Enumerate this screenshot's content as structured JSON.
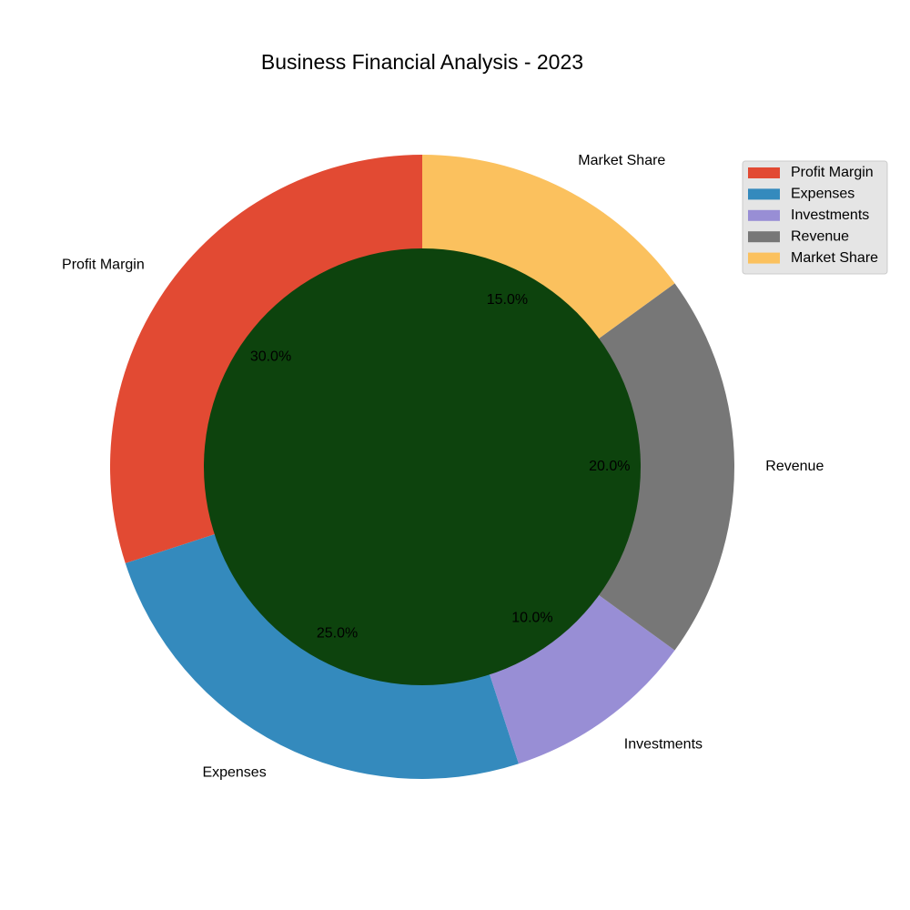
{
  "chart_data": {
    "type": "pie",
    "variant": "donut",
    "title": "Business Financial Analysis - 2023",
    "categories": [
      "Profit Margin",
      "Expenses",
      "Investments",
      "Revenue",
      "Market Share"
    ],
    "values": [
      30,
      25,
      10,
      20,
      15
    ],
    "percent_labels": [
      "30.0%",
      "25.0%",
      "10.0%",
      "20.0%",
      "15.0%"
    ],
    "colors": [
      "#E24A33",
      "#348ABD",
      "#988ED5",
      "#777777",
      "#FBC15E"
    ],
    "center_color": "#0D430D",
    "start_angle_deg": 90,
    "direction": "counterclockwise",
    "legend": {
      "placement": "top-right",
      "entries": [
        "Profit Margin",
        "Expenses",
        "Investments",
        "Revenue",
        "Market Share"
      ]
    }
  }
}
